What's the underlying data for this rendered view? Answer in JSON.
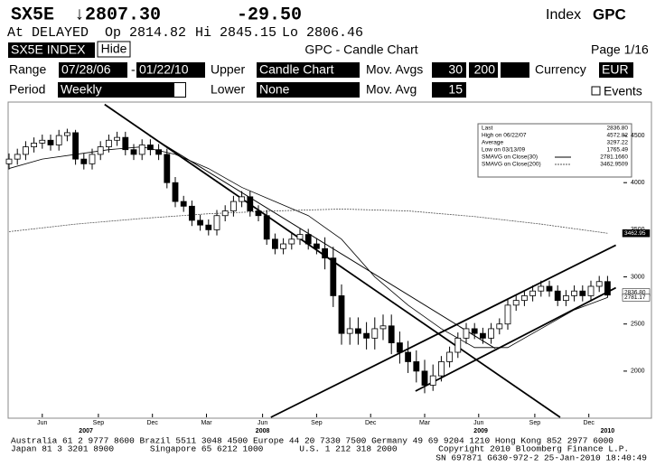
{
  "header": {
    "ticker": "SX5E",
    "price": "↓2807.30",
    "change": "-29.50",
    "index_label": "Index",
    "function": "GPC",
    "status": "At DELAYED",
    "open": "Op 2814.82",
    "high": "Hi 2845.15",
    "low": "Lo 2806.46"
  },
  "toolbar": {
    "security": "SX5E INDEX",
    "hide": "Hide",
    "title": "GPC - Candle Chart",
    "page": "Page 1/16",
    "range_label": "Range",
    "range_start": "07/28/06",
    "range_sep": "-",
    "range_end": "01/22/10",
    "upper_label": "Upper",
    "upper": "Candle Chart",
    "mov_avgs_label": "Mov. Avgs",
    "mov_avg_1": "30",
    "mov_avg_2": "200",
    "currency_label": "Currency",
    "currency": "EUR",
    "period_label": "Period",
    "period": "Weekly",
    "lower_label": "Lower",
    "lower": "None",
    "mov_avg_label": "Mov. Avg",
    "mov_avg": "15",
    "events": "Events"
  },
  "chart_data": {
    "type": "candlestick",
    "color_up": "#ffffff",
    "color_down": "#000000",
    "x": [
      0,
      2,
      4,
      6,
      8,
      10,
      12,
      14,
      16,
      18,
      20,
      22,
      24,
      26,
      28,
      30,
      32,
      34,
      36,
      38,
      40,
      42,
      44,
      46,
      48,
      50,
      52,
      54,
      56,
      58,
      60,
      62,
      64,
      66,
      68,
      70,
      72,
      74,
      76,
      78,
      80,
      82,
      84,
      86,
      88,
      90,
      92,
      94,
      96,
      98,
      100,
      102,
      104,
      106,
      108,
      110,
      112,
      114,
      116,
      118,
      120,
      122,
      124,
      126,
      128,
      130,
      132,
      134,
      136,
      138,
      140,
      142,
      144
    ],
    "open": [
      4200,
      4250,
      4300,
      4380,
      4420,
      4450,
      4400,
      4500,
      4530,
      4250,
      4200,
      4300,
      4380,
      4450,
      4480,
      4350,
      4300,
      4400,
      4350,
      4300,
      4000,
      3800,
      3750,
      3600,
      3550,
      3500,
      3650,
      3700,
      3800,
      3850,
      3700,
      3650,
      3400,
      3300,
      3350,
      3400,
      3450,
      3350,
      3300,
      3200,
      2800,
      2400,
      2450,
      2400,
      2350,
      2450,
      2480,
      2300,
      2200,
      2100,
      2000,
      1850,
      1950,
      2100,
      2200,
      2350,
      2450,
      2400,
      2350,
      2450,
      2500,
      2700,
      2750,
      2800,
      2850,
      2900,
      2850,
      2750,
      2800,
      2850,
      2800,
      2900,
      2950
    ],
    "high": [
      4310,
      4360,
      4440,
      4480,
      4510,
      4510,
      4560,
      4572,
      4560,
      4310,
      4360,
      4440,
      4510,
      4540,
      4540,
      4410,
      4460,
      4460,
      4410,
      4360,
      4060,
      3860,
      3810,
      3660,
      3610,
      3710,
      3760,
      3860,
      3910,
      3910,
      3760,
      3710,
      3460,
      3410,
      3460,
      3510,
      3510,
      3410,
      3420,
      3320,
      2920,
      2570,
      2570,
      2520,
      2570,
      2600,
      2600,
      2420,
      2320,
      2220,
      2120,
      2070,
      2160,
      2260,
      2410,
      2510,
      2510,
      2460,
      2510,
      2560,
      2760,
      2810,
      2860,
      2910,
      2960,
      2960,
      2910,
      2860,
      2910,
      2910,
      2960,
      3010,
      3010
    ],
    "low": [
      4140,
      4190,
      4240,
      4320,
      4360,
      4340,
      4340,
      4440,
      4190,
      4140,
      4140,
      4240,
      4320,
      4390,
      4290,
      4240,
      4240,
      4290,
      4240,
      3940,
      3740,
      3690,
      3540,
      3490,
      3440,
      3440,
      3590,
      3640,
      3740,
      3640,
      3590,
      3340,
      3240,
      3240,
      3290,
      3340,
      3290,
      3240,
      3080,
      2680,
      2280,
      2280,
      2280,
      2230,
      2230,
      2330,
      2180,
      2080,
      1980,
      1880,
      1765,
      1790,
      1890,
      2040,
      2140,
      2290,
      2340,
      2290,
      2290,
      2390,
      2440,
      2640,
      2690,
      2740,
      2790,
      2790,
      2690,
      2690,
      2740,
      2740,
      2740,
      2840,
      2780
    ],
    "close": [
      4250,
      4300,
      4380,
      4420,
      4450,
      4400,
      4500,
      4530,
      4250,
      4200,
      4300,
      4380,
      4450,
      4480,
      4350,
      4300,
      4400,
      4350,
      4300,
      4000,
      3800,
      3750,
      3600,
      3550,
      3500,
      3650,
      3700,
      3800,
      3850,
      3700,
      3650,
      3400,
      3300,
      3350,
      3400,
      3450,
      3350,
      3300,
      3200,
      2800,
      2400,
      2450,
      2400,
      2350,
      2450,
      2480,
      2300,
      2200,
      2100,
      2000,
      1850,
      1950,
      2100,
      2200,
      2350,
      2450,
      2400,
      2350,
      2450,
      2500,
      2700,
      2750,
      2800,
      2850,
      2900,
      2850,
      2750,
      2800,
      2850,
      2800,
      2900,
      2950,
      2807
    ],
    "xlim": [
      0,
      146
    ],
    "ylim": [
      1510,
      4836
    ],
    "yticks": [
      2000,
      2500,
      3000,
      3500,
      4000,
      4500
    ],
    "xticks": [
      {
        "value": 8,
        "label": "Jun"
      },
      {
        "value": 21.5,
        "label": "Sep"
      },
      {
        "value": 34.5,
        "label": "Dec"
      },
      {
        "value": 47.5,
        "label": "Mar"
      },
      {
        "value": 61,
        "label": "Jun"
      },
      {
        "value": 74,
        "label": "Sep"
      },
      {
        "value": 87,
        "label": "Dec"
      },
      {
        "value": 100,
        "label": "Mar"
      },
      {
        "value": 113,
        "label": "Jun"
      },
      {
        "value": 126.5,
        "label": "Sep"
      },
      {
        "value": 139.5,
        "label": "Dec"
      }
    ],
    "year_labels": [
      {
        "value": 18.5,
        "label": "2007"
      },
      {
        "value": 61,
        "label": "2008"
      },
      {
        "value": 113.5,
        "label": "2009"
      },
      {
        "value": 144,
        "label": "2010"
      }
    ],
    "moving_averages": [
      {
        "name": "SMAVG on Close(30)",
        "last_label": "2781.1660",
        "color": "#000000",
        "x": [
          0,
          8,
          16,
          24,
          32,
          40,
          48,
          56,
          64,
          72,
          80,
          88,
          96,
          104,
          112,
          120,
          128,
          136,
          144
        ],
        "values": [
          4150,
          4250,
          4300,
          4350,
          4380,
          4300,
          4150,
          3950,
          3800,
          3650,
          3400,
          3000,
          2700,
          2450,
          2250,
          2250,
          2450,
          2650,
          2781
        ]
      },
      {
        "name": "SMAVG on Close(200)",
        "last_label": "3462.9509",
        "color": "#555555",
        "dashed": true,
        "x": [
          0,
          16,
          32,
          48,
          64,
          80,
          96,
          112,
          128,
          144
        ],
        "values": [
          3480,
          3560,
          3620,
          3670,
          3700,
          3720,
          3700,
          3640,
          3560,
          3463
        ]
      }
    ],
    "trendlines": [
      {
        "x": [
          23,
          132.6
        ],
        "values": [
          4830,
          1510
        ]
      },
      {
        "x": [
          63,
          146
        ],
        "values": [
          1510,
          3337
        ]
      },
      {
        "x": [
          97.8,
          146
        ],
        "values": [
          1788,
          2885
        ]
      },
      {
        "x": [
          33.7,
          117
        ],
        "values": [
          4500,
          2240
        ]
      }
    ],
    "stats": [
      {
        "label": "Last",
        "value": "2836.80"
      },
      {
        "label": "High on 06/22/07",
        "value": "4572.82"
      },
      {
        "label": "Average",
        "value": "3297.22"
      },
      {
        "label": "Low on 03/13/09",
        "value": "1765.49"
      }
    ],
    "axis_tags": [
      {
        "value": 3462.95,
        "label": "3462.95"
      },
      {
        "value": 2836.8,
        "label": "2836.80"
      },
      {
        "value": 2781.17,
        "label": "2781.17"
      }
    ]
  },
  "footer": [
    "Australia 61 2 9777 8600 Brazil 5511 3048 4500 Europe 44 20 7330 7500 Germany 49 69 9204 1210 Hong Kong 852 2977 6000",
    "Japan 81 3 3201 8900       Singapore 65 6212 1000       U.S. 1 212 318 2000        Copyright 2010 Bloomberg Finance L.P.",
    "SN 697871 G630-972-2 25-Jan-2010 18:40:49"
  ]
}
